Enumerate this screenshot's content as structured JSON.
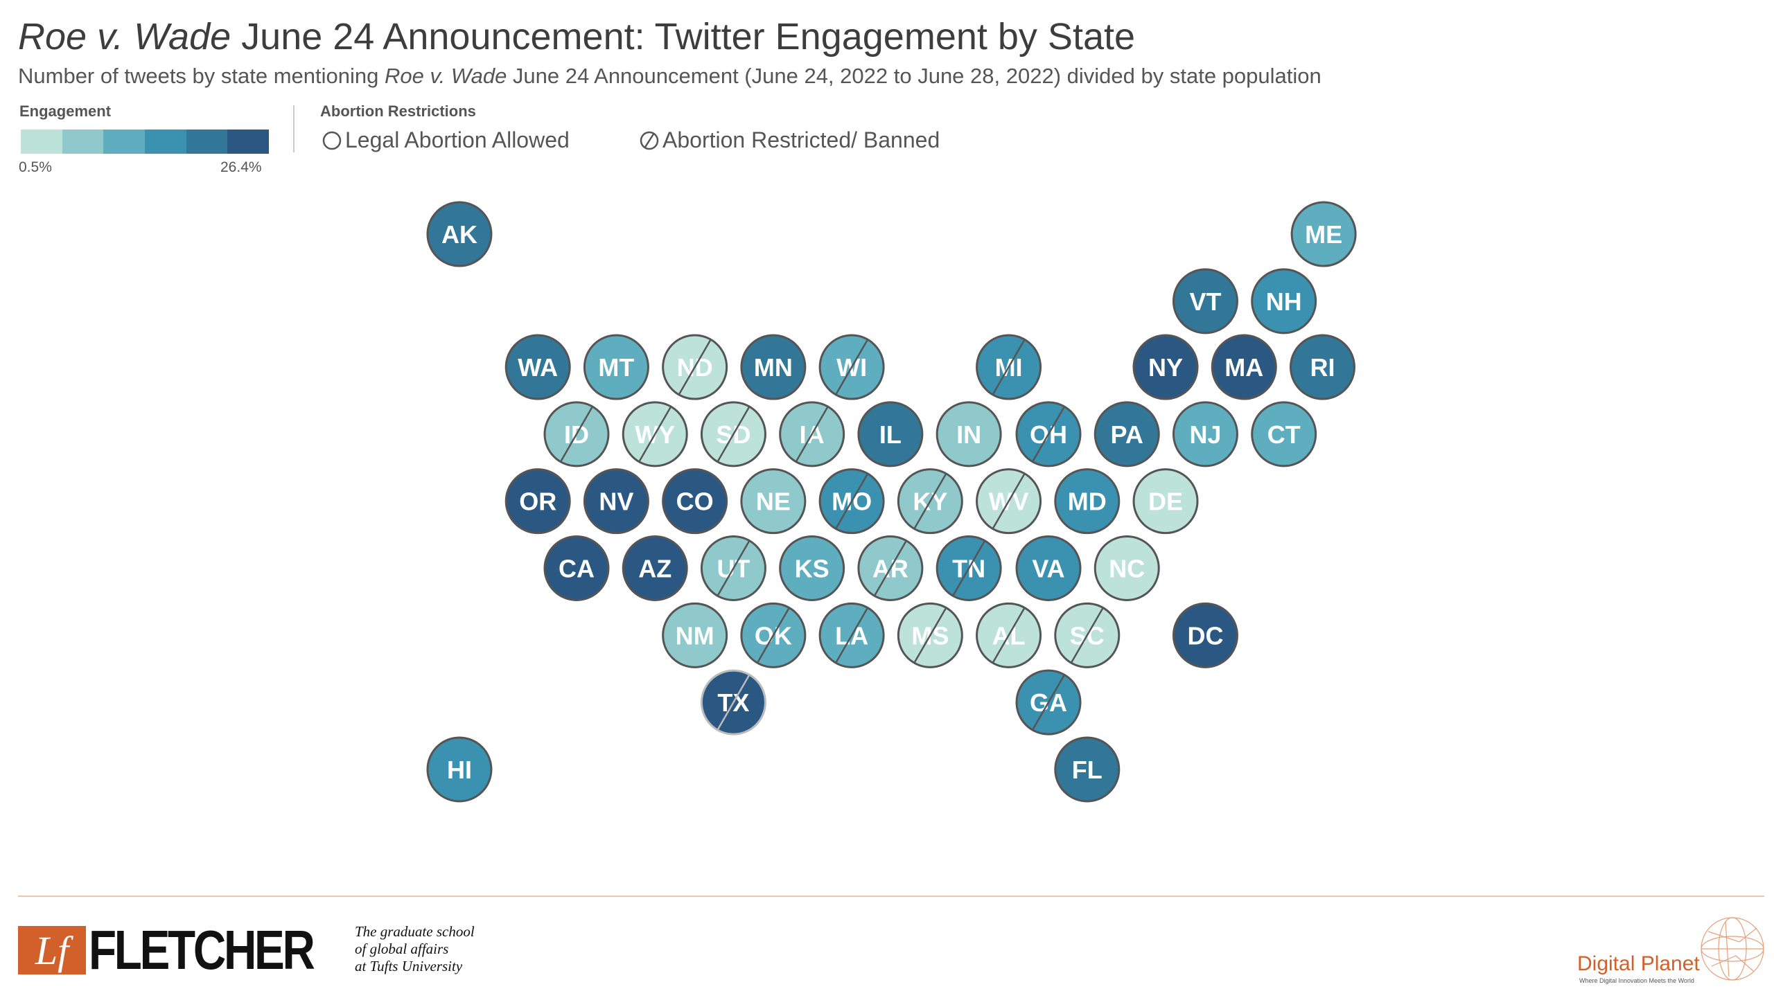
{
  "header": {
    "title_italic": "Roe v. Wade",
    "title_rest": " June 24 Announcement: Twitter Engagement by State",
    "subtitle_pre": "Number of tweets by state mentioning ",
    "subtitle_italic": "Roe v. Wade",
    "subtitle_post": " June 24 Announcement (June 24, 2022 to June 28, 2022) divided by state population"
  },
  "legend": {
    "engagement_title": "Engagement",
    "min_label": "0.5%",
    "max_label": "26.4%",
    "scale_colors": [
      "#bde3d8",
      "#8fc9cc",
      "#5eaec0",
      "#3a91b0",
      "#327698",
      "#2b5883"
    ],
    "restrictions_title": "Abortion Restrictions",
    "legal_label": "Legal Abortion Allowed",
    "restricted_label": "Abortion Restricted/ Banned"
  },
  "states": [
    {
      "abbr": "AK",
      "level": 5,
      "restricted": false
    },
    {
      "abbr": "ME",
      "level": 3,
      "restricted": false
    },
    {
      "abbr": "VT",
      "level": 5,
      "restricted": false
    },
    {
      "abbr": "NH",
      "level": 4,
      "restricted": false
    },
    {
      "abbr": "WA",
      "level": 5,
      "restricted": false
    },
    {
      "abbr": "MT",
      "level": 3,
      "restricted": false
    },
    {
      "abbr": "ND",
      "level": 1,
      "restricted": true
    },
    {
      "abbr": "MN",
      "level": 5,
      "restricted": false
    },
    {
      "abbr": "WI",
      "level": 3,
      "restricted": true
    },
    {
      "abbr": "MI",
      "level": 4,
      "restricted": true
    },
    {
      "abbr": "NY",
      "level": 6,
      "restricted": false
    },
    {
      "abbr": "MA",
      "level": 6,
      "restricted": false
    },
    {
      "abbr": "RI",
      "level": 5,
      "restricted": false
    },
    {
      "abbr": "ID",
      "level": 2,
      "restricted": true
    },
    {
      "abbr": "WY",
      "level": 1,
      "restricted": true
    },
    {
      "abbr": "SD",
      "level": 1,
      "restricted": true
    },
    {
      "abbr": "IA",
      "level": 2,
      "restricted": true
    },
    {
      "abbr": "IL",
      "level": 5,
      "restricted": false
    },
    {
      "abbr": "IN",
      "level": 2,
      "restricted": false
    },
    {
      "abbr": "OH",
      "level": 4,
      "restricted": true
    },
    {
      "abbr": "PA",
      "level": 5,
      "restricted": false
    },
    {
      "abbr": "NJ",
      "level": 3,
      "restricted": false
    },
    {
      "abbr": "CT",
      "level": 3,
      "restricted": false
    },
    {
      "abbr": "OR",
      "level": 6,
      "restricted": false
    },
    {
      "abbr": "NV",
      "level": 6,
      "restricted": false
    },
    {
      "abbr": "CO",
      "level": 6,
      "restricted": false
    },
    {
      "abbr": "NE",
      "level": 2,
      "restricted": false
    },
    {
      "abbr": "MO",
      "level": 4,
      "restricted": true
    },
    {
      "abbr": "KY",
      "level": 2,
      "restricted": true
    },
    {
      "abbr": "WV",
      "level": 1,
      "restricted": true
    },
    {
      "abbr": "MD",
      "level": 4,
      "restricted": false
    },
    {
      "abbr": "DE",
      "level": 1,
      "restricted": false
    },
    {
      "abbr": "CA",
      "level": 6,
      "restricted": false
    },
    {
      "abbr": "AZ",
      "level": 6,
      "restricted": false
    },
    {
      "abbr": "UT",
      "level": 2,
      "restricted": true
    },
    {
      "abbr": "KS",
      "level": 3,
      "restricted": false
    },
    {
      "abbr": "AR",
      "level": 2,
      "restricted": true
    },
    {
      "abbr": "TN",
      "level": 4,
      "restricted": true
    },
    {
      "abbr": "VA",
      "level": 4,
      "restricted": false
    },
    {
      "abbr": "NC",
      "level": 1,
      "restricted": false
    },
    {
      "abbr": "NM",
      "level": 2,
      "restricted": false
    },
    {
      "abbr": "OK",
      "level": 3,
      "restricted": true
    },
    {
      "abbr": "LA",
      "level": 3,
      "restricted": true
    },
    {
      "abbr": "MS",
      "level": 1,
      "restricted": true
    },
    {
      "abbr": "AL",
      "level": 1,
      "restricted": true
    },
    {
      "abbr": "SC",
      "level": 1,
      "restricted": true
    },
    {
      "abbr": "DC",
      "level": 6,
      "restricted": false
    },
    {
      "abbr": "TX",
      "level": 6,
      "restricted": true
    },
    {
      "abbr": "GA",
      "level": 4,
      "restricted": true
    },
    {
      "abbr": "HI",
      "level": 4,
      "restricted": false
    },
    {
      "abbr": "FL",
      "level": 5,
      "restricted": false
    }
  ],
  "footer": {
    "logo_mark": "Lf",
    "logo_name": "FLETCHER",
    "tagline": [
      "The graduate school",
      "of global affairs",
      "at Tufts University"
    ],
    "dp_name": "Digital Planet",
    "dp_tagline": "Where Digital Innovation Meets the World",
    "accent": "#d2602a"
  }
}
